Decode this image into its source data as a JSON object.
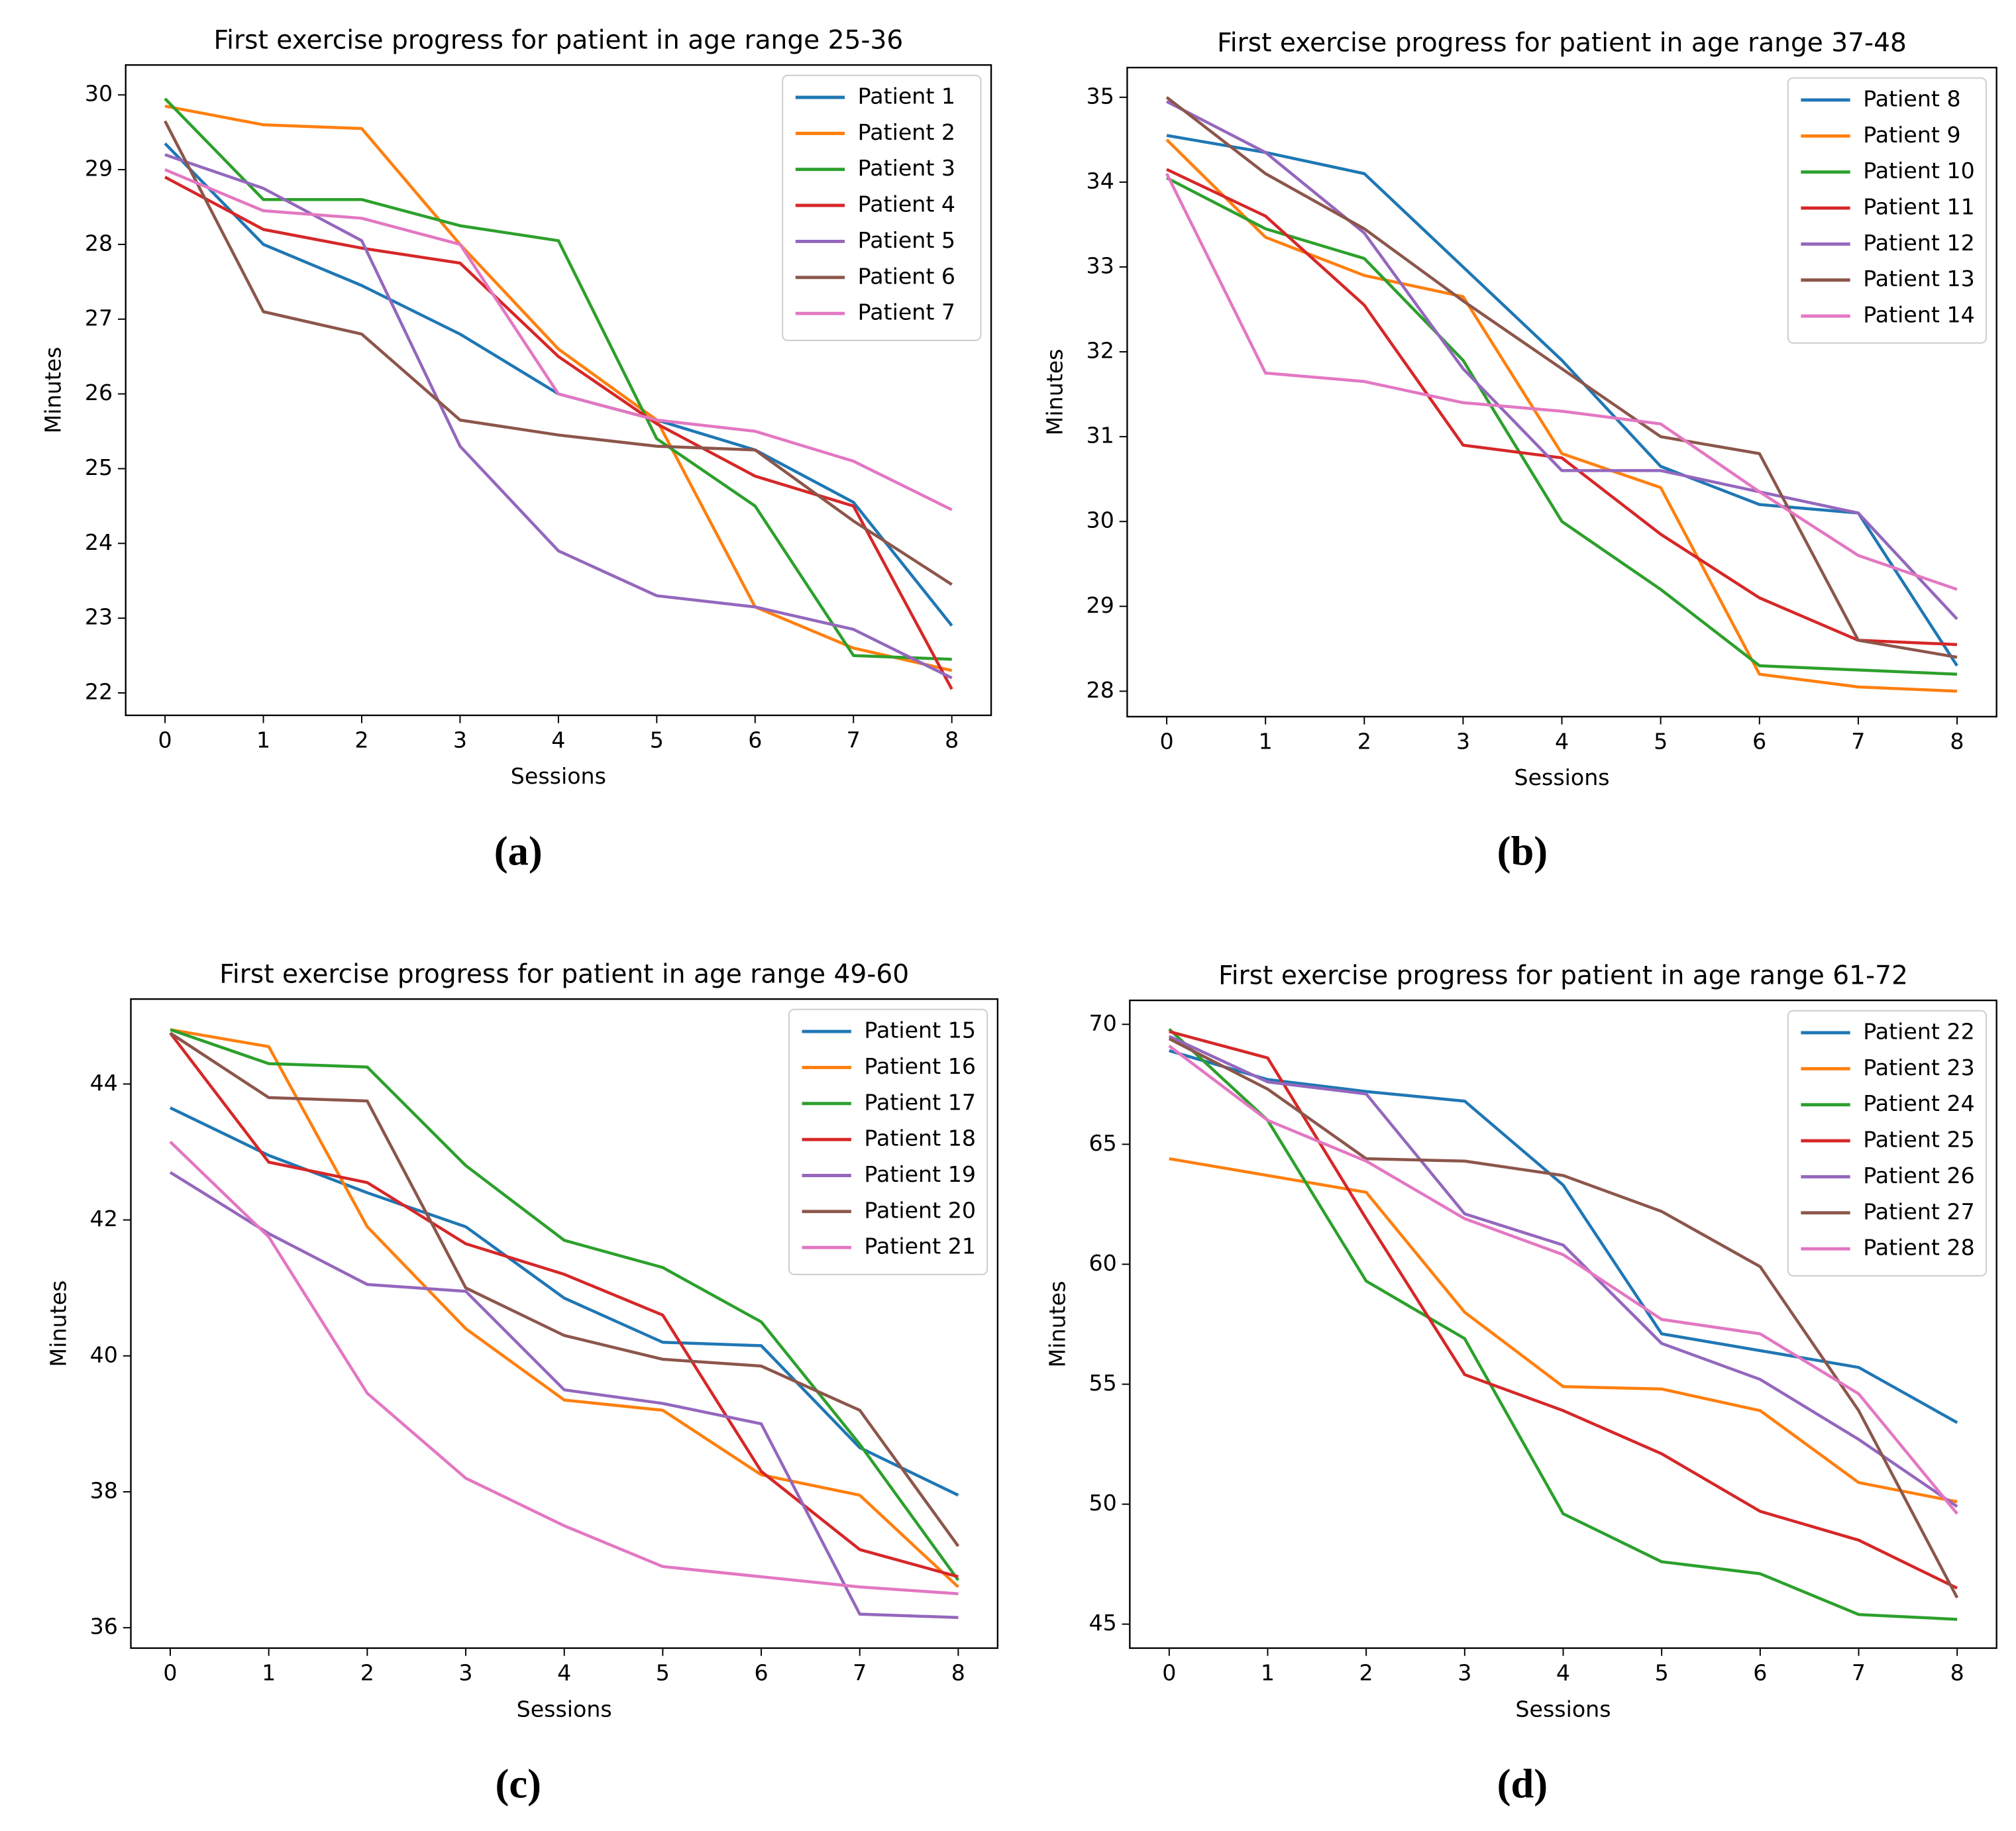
{
  "chart_data": [
    {
      "type": "line",
      "title": "First exercise progress for patient in age range 25-36",
      "caption": "(a)",
      "x_label": "Sessions",
      "y_label": "Minutes",
      "x": [
        0,
        1,
        2,
        3,
        4,
        5,
        6,
        7,
        8
      ],
      "xlim": [
        -0.4,
        8.4
      ],
      "xticks": [
        0,
        1,
        2,
        3,
        4,
        5,
        6,
        7,
        8
      ],
      "ylim": [
        21.7,
        30.4
      ],
      "yticks": [
        22,
        23,
        24,
        25,
        26,
        27,
        28,
        29,
        30
      ],
      "legend": "upper right",
      "series": [
        {
          "name": "Patient 1",
          "color": "#1f77b4",
          "values": [
            29.35,
            28.0,
            27.45,
            26.8,
            26.0,
            25.65,
            25.25,
            24.55,
            22.9
          ]
        },
        {
          "name": "Patient 2",
          "color": "#ff7f0e",
          "values": [
            29.85,
            29.6,
            29.55,
            28.0,
            26.6,
            25.65,
            23.15,
            22.6,
            22.3
          ]
        },
        {
          "name": "Patient 3",
          "color": "#2ca02c",
          "values": [
            29.95,
            28.6,
            28.6,
            28.25,
            28.05,
            25.4,
            24.5,
            22.5,
            22.45
          ]
        },
        {
          "name": "Patient 4",
          "color": "#d62728",
          "values": [
            28.9,
            28.2,
            27.95,
            27.75,
            26.5,
            25.6,
            24.9,
            24.5,
            22.05
          ]
        },
        {
          "name": "Patient 5",
          "color": "#9467bd",
          "values": [
            29.2,
            28.75,
            28.05,
            25.3,
            23.9,
            23.3,
            23.15,
            22.85,
            22.2
          ]
        },
        {
          "name": "Patient 6",
          "color": "#8c564b",
          "values": [
            29.65,
            27.1,
            26.8,
            25.65,
            25.45,
            25.3,
            25.25,
            24.3,
            23.45
          ]
        },
        {
          "name": "Patient 7",
          "color": "#e377c2",
          "values": [
            29.0,
            28.45,
            28.35,
            28.0,
            26.0,
            25.65,
            25.5,
            25.1,
            24.45
          ]
        }
      ]
    },
    {
      "type": "line",
      "title": "First exercise progress for patient in age range 37-48",
      "caption": "(b)",
      "x_label": "Sessions",
      "y_label": "Minutes",
      "x": [
        0,
        1,
        2,
        3,
        4,
        5,
        6,
        7,
        8
      ],
      "xlim": [
        -0.4,
        8.4
      ],
      "xticks": [
        0,
        1,
        2,
        3,
        4,
        5,
        6,
        7,
        8
      ],
      "ylim": [
        27.7,
        35.35
      ],
      "yticks": [
        28,
        29,
        30,
        31,
        32,
        33,
        34,
        35
      ],
      "legend": "upper right",
      "series": [
        {
          "name": "Patient 8",
          "color": "#1f77b4",
          "values": [
            34.55,
            34.35,
            34.1,
            33.0,
            31.9,
            30.65,
            30.2,
            30.1,
            28.3
          ]
        },
        {
          "name": "Patient 9",
          "color": "#ff7f0e",
          "values": [
            34.5,
            33.35,
            32.9,
            32.65,
            30.8,
            30.4,
            28.2,
            28.05,
            28.0
          ]
        },
        {
          "name": "Patient 10",
          "color": "#2ca02c",
          "values": [
            34.05,
            33.45,
            33.1,
            31.9,
            30.0,
            29.2,
            28.3,
            28.25,
            28.2
          ]
        },
        {
          "name": "Patient 11",
          "color": "#d62728",
          "values": [
            34.15,
            33.6,
            32.55,
            30.9,
            30.75,
            29.85,
            29.1,
            28.6,
            28.55
          ]
        },
        {
          "name": "Patient 12",
          "color": "#9467bd",
          "values": [
            34.95,
            34.35,
            33.4,
            31.8,
            30.6,
            30.6,
            30.35,
            30.1,
            28.85
          ]
        },
        {
          "name": "Patient 13",
          "color": "#8c564b",
          "values": [
            35.0,
            34.1,
            33.45,
            32.6,
            31.8,
            31.0,
            30.8,
            28.6,
            28.4
          ]
        },
        {
          "name": "Patient 14",
          "color": "#e377c2",
          "values": [
            34.1,
            31.75,
            31.65,
            31.4,
            31.3,
            31.15,
            30.35,
            29.6,
            29.2
          ]
        }
      ]
    },
    {
      "type": "line",
      "title": "First exercise progress for patient in age range 49-60",
      "caption": "(c)",
      "x_label": "Sessions",
      "y_label": "Minutes",
      "x": [
        0,
        1,
        2,
        3,
        4,
        5,
        6,
        7,
        8
      ],
      "xlim": [
        -0.4,
        8.4
      ],
      "xticks": [
        0,
        1,
        2,
        3,
        4,
        5,
        6,
        7,
        8
      ],
      "ylim": [
        35.7,
        45.25
      ],
      "yticks": [
        36,
        38,
        40,
        42,
        44
      ],
      "legend": "upper right",
      "series": [
        {
          "name": "Patient 15",
          "color": "#1f77b4",
          "values": [
            43.65,
            42.95,
            42.4,
            41.9,
            40.85,
            40.2,
            40.15,
            38.65,
            37.95
          ]
        },
        {
          "name": "Patient 16",
          "color": "#ff7f0e",
          "values": [
            44.8,
            44.55,
            41.9,
            40.4,
            39.35,
            39.2,
            38.25,
            37.95,
            36.6
          ]
        },
        {
          "name": "Patient 17",
          "color": "#2ca02c",
          "values": [
            44.8,
            44.3,
            44.25,
            42.8,
            41.7,
            41.3,
            40.5,
            38.7,
            36.7
          ]
        },
        {
          "name": "Patient 18",
          "color": "#d62728",
          "values": [
            44.75,
            42.85,
            42.55,
            41.65,
            41.2,
            40.6,
            38.3,
            37.15,
            36.75
          ]
        },
        {
          "name": "Patient 19",
          "color": "#9467bd",
          "values": [
            42.7,
            41.8,
            41.05,
            40.95,
            39.5,
            39.3,
            39.0,
            36.2,
            36.15
          ]
        },
        {
          "name": "Patient 20",
          "color": "#8c564b",
          "values": [
            44.75,
            43.8,
            43.75,
            41.0,
            40.3,
            39.95,
            39.85,
            39.2,
            37.2
          ]
        },
        {
          "name": "Patient 21",
          "color": "#e377c2",
          "values": [
            43.15,
            41.75,
            39.45,
            38.2,
            37.5,
            36.9,
            36.75,
            36.6,
            36.5
          ]
        }
      ]
    },
    {
      "type": "line",
      "title": "First exercise progress for patient in age range 61-72",
      "caption": "(d)",
      "x_label": "Sessions",
      "y_label": "Minutes",
      "x": [
        0,
        1,
        2,
        3,
        4,
        5,
        6,
        7,
        8
      ],
      "xlim": [
        -0.4,
        8.4
      ],
      "xticks": [
        0,
        1,
        2,
        3,
        4,
        5,
        6,
        7,
        8
      ],
      "ylim": [
        44,
        71
      ],
      "yticks": [
        45,
        50,
        55,
        60,
        65,
        70
      ],
      "legend": "upper right",
      "series": [
        {
          "name": "Patient 22",
          "color": "#1f77b4",
          "values": [
            68.9,
            67.7,
            67.2,
            66.8,
            63.3,
            57.1,
            56.4,
            55.7,
            53.4
          ]
        },
        {
          "name": "Patient 23",
          "color": "#ff7f0e",
          "values": [
            64.4,
            63.7,
            63.0,
            58.0,
            54.9,
            54.8,
            53.9,
            50.9,
            50.1
          ]
        },
        {
          "name": "Patient 24",
          "color": "#2ca02c",
          "values": [
            69.8,
            66.0,
            59.3,
            56.9,
            49.6,
            47.6,
            47.1,
            45.4,
            45.2
          ]
        },
        {
          "name": "Patient 25",
          "color": "#d62728",
          "values": [
            69.7,
            68.6,
            61.9,
            55.4,
            53.9,
            52.1,
            49.7,
            48.5,
            46.5
          ]
        },
        {
          "name": "Patient 26",
          "color": "#9467bd",
          "values": [
            69.5,
            67.6,
            67.1,
            62.1,
            60.8,
            56.7,
            55.2,
            52.7,
            49.9
          ]
        },
        {
          "name": "Patient 27",
          "color": "#8c564b",
          "values": [
            69.4,
            67.3,
            64.4,
            64.3,
            63.7,
            62.2,
            59.9,
            53.9,
            46.1
          ]
        },
        {
          "name": "Patient 28",
          "color": "#e377c2",
          "values": [
            69.1,
            66.0,
            64.3,
            61.9,
            60.4,
            57.7,
            57.1,
            54.6,
            49.6
          ]
        }
      ]
    }
  ]
}
